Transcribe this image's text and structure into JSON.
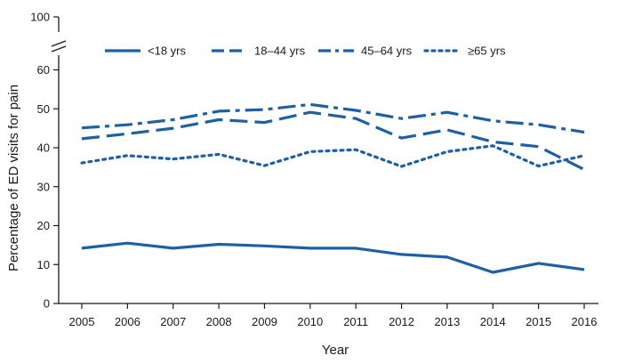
{
  "chart_data": {
    "type": "line",
    "title": "",
    "xlabel": "Year",
    "ylabel": "Percentage of ED visits for pain",
    "categories": [
      "2005",
      "2006",
      "2007",
      "2008",
      "2009",
      "2010",
      "2011",
      "2012",
      "2013",
      "2014",
      "2015",
      "2016"
    ],
    "ylim": [
      0,
      100
    ],
    "y_ticks": [
      0,
      10,
      20,
      30,
      40,
      50,
      60,
      100
    ],
    "axis_break": [
      60,
      100
    ],
    "grid": false,
    "legend_position": "top",
    "series": [
      {
        "name": "<18 yrs",
        "style": "solid",
        "values": [
          14.2,
          15.5,
          14.2,
          15.2,
          14.8,
          14.2,
          14.2,
          12.6,
          11.9,
          8.0,
          10.3,
          8.7
        ]
      },
      {
        "name": "18–44 yrs",
        "style": "dashed",
        "values": [
          42.3,
          43.6,
          45.0,
          47.2,
          46.5,
          49.1,
          47.5,
          42.5,
          44.6,
          41.5,
          40.3,
          34.4
        ]
      },
      {
        "name": "45–64 yrs",
        "style": "dash-dot",
        "values": [
          45.1,
          45.9,
          47.2,
          49.4,
          49.8,
          51.1,
          49.6,
          47.5,
          49.1,
          46.9,
          45.9,
          44.0
        ]
      },
      {
        "name": "≥65 yrs",
        "style": "dotted",
        "values": [
          36.1,
          38.0,
          37.1,
          38.3,
          35.4,
          39.0,
          39.5,
          35.2,
          39.0,
          40.5,
          35.3,
          38.0
        ]
      }
    ],
    "colors": {
      "line": "#1f5fa6",
      "axis": "#1a1a1a"
    }
  }
}
